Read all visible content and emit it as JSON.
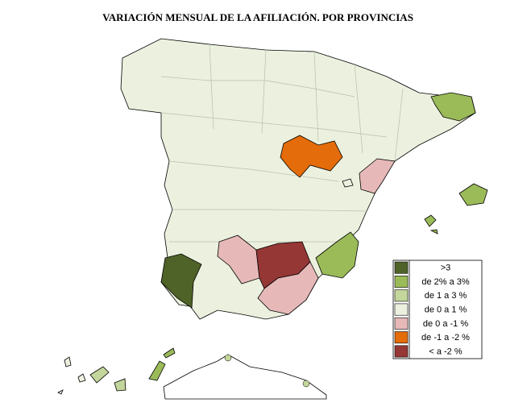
{
  "title": "VARIACIÓN MENSUAL DE LA AFILIACIÓN. POR PROVINCIAS",
  "legend": {
    "items": [
      {
        "label": ">3",
        "color": "#4f6228"
      },
      {
        "label": "de 2% a 3%",
        "color": "#9bbb59"
      },
      {
        "label": "de 1 a 3 %",
        "color": "#c3d69b"
      },
      {
        "label": "de 0 a 1 %",
        "color": "#ebf1de"
      },
      {
        "label": "de 0 a -1 %",
        "color": "#e6b9b8"
      },
      {
        "label": "de -1 a -2 %",
        "color": "#e46c0a"
      },
      {
        "label": "< a -2 %",
        "color": "#953735"
      }
    ]
  }
}
